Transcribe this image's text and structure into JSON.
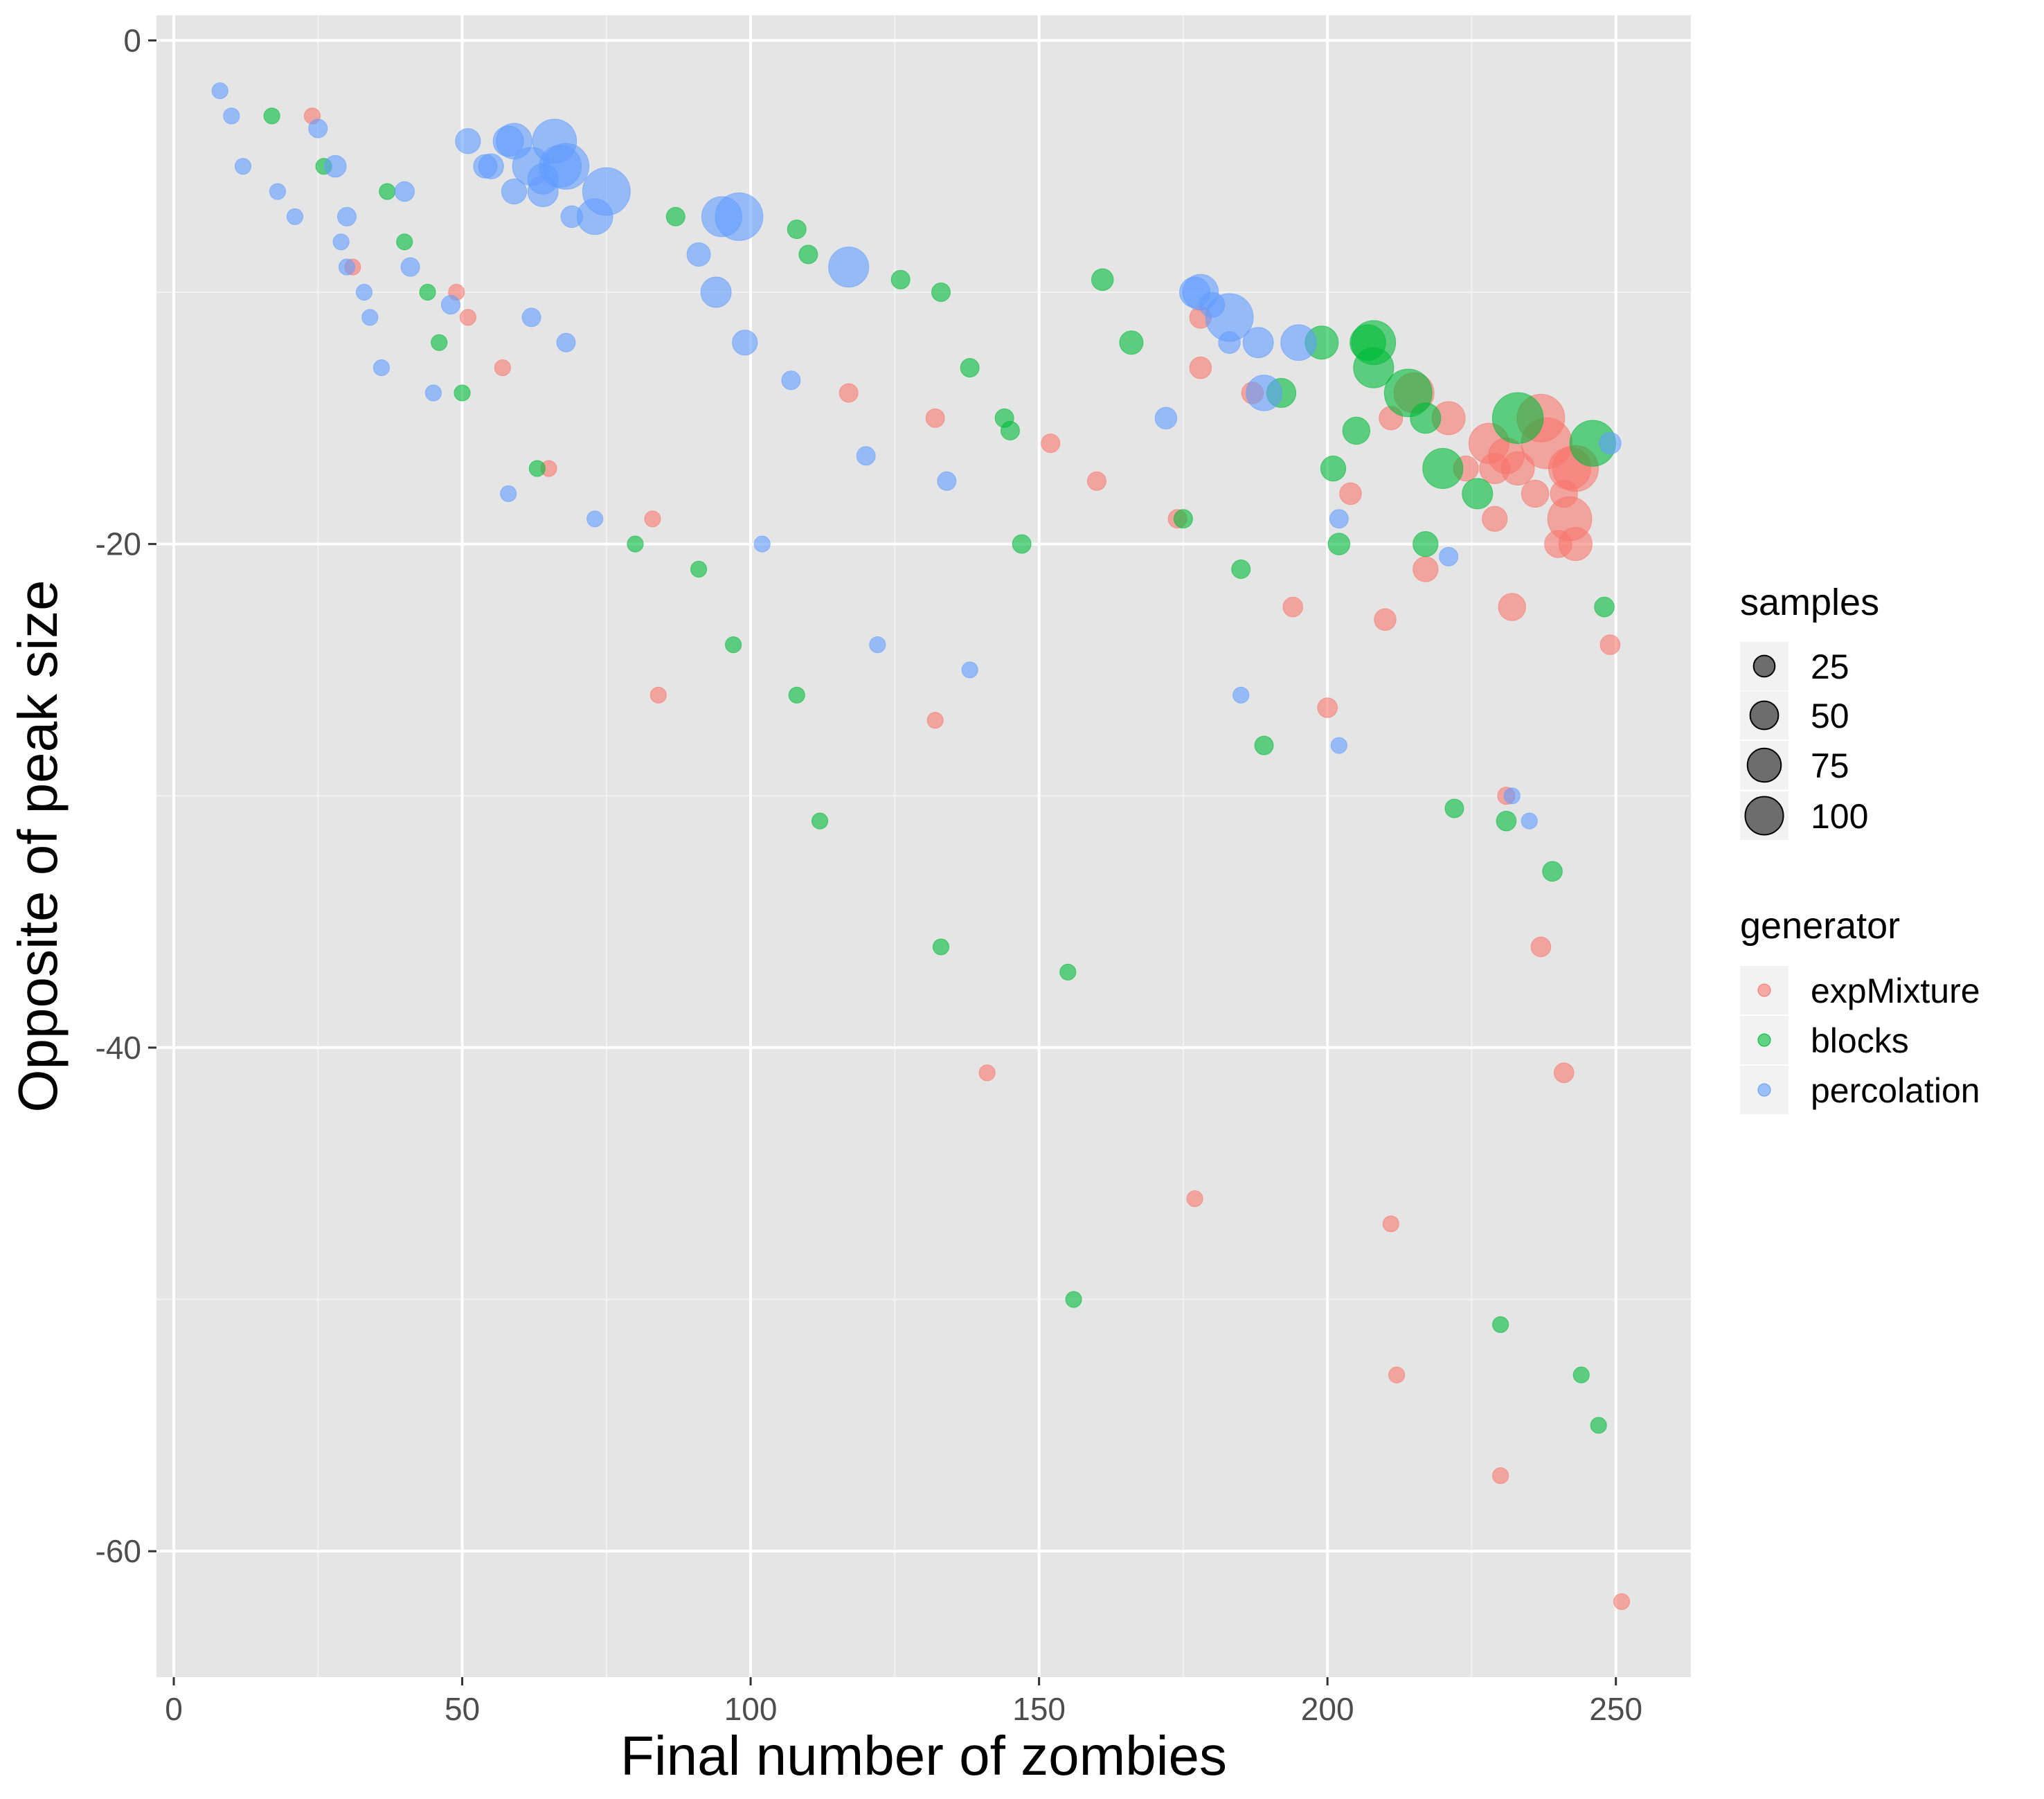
{
  "chart_data": {
    "type": "scatter",
    "xlabel": "Final number of zombies",
    "ylabel": "Opposite of peak size",
    "xlim": [
      -3,
      263
    ],
    "ylim": [
      -65,
      1
    ],
    "x_ticks": [
      0,
      50,
      100,
      150,
      200,
      250
    ],
    "x_tick_labels": [
      "0",
      "50",
      "100",
      "150",
      "200",
      "250"
    ],
    "y_ticks": [
      0,
      -20,
      -40,
      -60
    ],
    "y_tick_labels": [
      "0",
      "-20",
      "-40",
      "-60"
    ],
    "y_minor_ticks": [
      -10,
      -30,
      -50
    ],
    "grid": true,
    "legend_position": "right",
    "size_legend": {
      "title": "samples",
      "values": [
        25,
        50,
        75,
        100
      ],
      "labels": [
        "25",
        "50",
        "75",
        "100"
      ]
    },
    "color_legend": {
      "title": "generator"
    },
    "series": [
      {
        "name": "expMixture",
        "color": "#F8766D",
        "points": [
          {
            "x": 24,
            "y": -3,
            "s": 3
          },
          {
            "x": 31,
            "y": -9,
            "s": 3
          },
          {
            "x": 49,
            "y": -10,
            "s": 3
          },
          {
            "x": 51,
            "y": -11,
            "s": 3
          },
          {
            "x": 57,
            "y": -13,
            "s": 3
          },
          {
            "x": 65,
            "y": -17,
            "s": 3
          },
          {
            "x": 83,
            "y": -19,
            "s": 3
          },
          {
            "x": 84,
            "y": -26,
            "s": 3
          },
          {
            "x": 117,
            "y": -14,
            "s": 5
          },
          {
            "x": 132,
            "y": -15,
            "s": 5
          },
          {
            "x": 132,
            "y": -27,
            "s": 3
          },
          {
            "x": 141,
            "y": -41,
            "s": 3
          },
          {
            "x": 152,
            "y": -16,
            "s": 5
          },
          {
            "x": 160,
            "y": -17.5,
            "s": 5
          },
          {
            "x": 174,
            "y": -19,
            "s": 5
          },
          {
            "x": 177,
            "y": -46,
            "s": 3
          },
          {
            "x": 178,
            "y": -11,
            "s": 8
          },
          {
            "x": 178,
            "y": -13,
            "s": 8
          },
          {
            "x": 187,
            "y": -14,
            "s": 8
          },
          {
            "x": 194,
            "y": -22.5,
            "s": 6
          },
          {
            "x": 200,
            "y": -26.5,
            "s": 6
          },
          {
            "x": 204,
            "y": -18,
            "s": 8
          },
          {
            "x": 210,
            "y": -23,
            "s": 8
          },
          {
            "x": 211,
            "y": -47,
            "s": 3
          },
          {
            "x": 211,
            "y": -15,
            "s": 10
          },
          {
            "x": 212,
            "y": -53,
            "s": 3
          },
          {
            "x": 215,
            "y": -14,
            "s": 40
          },
          {
            "x": 217,
            "y": -21,
            "s": 12
          },
          {
            "x": 221,
            "y": -15,
            "s": 25
          },
          {
            "x": 224,
            "y": -17,
            "s": 12
          },
          {
            "x": 228,
            "y": -16,
            "s": 40
          },
          {
            "x": 229,
            "y": -19,
            "s": 12
          },
          {
            "x": 229,
            "y": -17,
            "s": 20
          },
          {
            "x": 230,
            "y": -57,
            "s": 3
          },
          {
            "x": 231,
            "y": -16.5,
            "s": 30
          },
          {
            "x": 232,
            "y": -22.5,
            "s": 15
          },
          {
            "x": 231,
            "y": -30,
            "s": 4
          },
          {
            "x": 233,
            "y": -17,
            "s": 25
          },
          {
            "x": 236,
            "y": -18,
            "s": 15
          },
          {
            "x": 237,
            "y": -15,
            "s": 60
          },
          {
            "x": 237,
            "y": -36,
            "s": 6
          },
          {
            "x": 238,
            "y": -16,
            "s": 70
          },
          {
            "x": 240,
            "y": -20,
            "s": 15
          },
          {
            "x": 241,
            "y": -18,
            "s": 15
          },
          {
            "x": 241,
            "y": -41,
            "s": 6
          },
          {
            "x": 242,
            "y": -17,
            "s": 45
          },
          {
            "x": 242,
            "y": -19,
            "s": 50
          },
          {
            "x": 243,
            "y": -17,
            "s": 55
          },
          {
            "x": 243,
            "y": -20,
            "s": 25
          },
          {
            "x": 249,
            "y": -24,
            "s": 6
          },
          {
            "x": 251,
            "y": -62,
            "s": 3
          }
        ]
      },
      {
        "name": "blocks",
        "color": "#00BA38",
        "points": [
          {
            "x": 17,
            "y": -3,
            "s": 3
          },
          {
            "x": 26,
            "y": -5,
            "s": 3
          },
          {
            "x": 37,
            "y": -6,
            "s": 3
          },
          {
            "x": 40,
            "y": -8,
            "s": 3
          },
          {
            "x": 44,
            "y": -10,
            "s": 3
          },
          {
            "x": 46,
            "y": -12,
            "s": 3
          },
          {
            "x": 50,
            "y": -14,
            "s": 3
          },
          {
            "x": 63,
            "y": -17,
            "s": 3
          },
          {
            "x": 80,
            "y": -20,
            "s": 3
          },
          {
            "x": 87,
            "y": -7,
            "s": 5
          },
          {
            "x": 91,
            "y": -21,
            "s": 3
          },
          {
            "x": 97,
            "y": -24,
            "s": 3
          },
          {
            "x": 108,
            "y": -7.5,
            "s": 5
          },
          {
            "x": 108,
            "y": -26,
            "s": 3
          },
          {
            "x": 110,
            "y": -8.5,
            "s": 5
          },
          {
            "x": 112,
            "y": -31,
            "s": 3
          },
          {
            "x": 126,
            "y": -9.5,
            "s": 5
          },
          {
            "x": 133,
            "y": -10,
            "s": 5
          },
          {
            "x": 133,
            "y": -36,
            "s": 3
          },
          {
            "x": 138,
            "y": -13,
            "s": 5
          },
          {
            "x": 144,
            "y": -15,
            "s": 5
          },
          {
            "x": 145,
            "y": -15.5,
            "s": 5
          },
          {
            "x": 147,
            "y": -20,
            "s": 5
          },
          {
            "x": 155,
            "y": -37,
            "s": 3
          },
          {
            "x": 156,
            "y": -50,
            "s": 3
          },
          {
            "x": 161,
            "y": -9.5,
            "s": 8
          },
          {
            "x": 166,
            "y": -12,
            "s": 10
          },
          {
            "x": 175,
            "y": -19,
            "s": 5
          },
          {
            "x": 185,
            "y": -21,
            "s": 5
          },
          {
            "x": 189,
            "y": -28,
            "s": 5
          },
          {
            "x": 192,
            "y": -14,
            "s": 18
          },
          {
            "x": 199,
            "y": -12,
            "s": 25
          },
          {
            "x": 201,
            "y": -17,
            "s": 12
          },
          {
            "x": 202,
            "y": -20,
            "s": 8
          },
          {
            "x": 205,
            "y": -15.5,
            "s": 15
          },
          {
            "x": 207,
            "y": -12,
            "s": 30
          },
          {
            "x": 208,
            "y": -12,
            "s": 50
          },
          {
            "x": 208,
            "y": -13,
            "s": 40
          },
          {
            "x": 214,
            "y": -14,
            "s": 60
          },
          {
            "x": 217,
            "y": -15,
            "s": 20
          },
          {
            "x": 217,
            "y": -20,
            "s": 12
          },
          {
            "x": 220,
            "y": -17,
            "s": 40
          },
          {
            "x": 222,
            "y": -30.5,
            "s": 5
          },
          {
            "x": 226,
            "y": -18,
            "s": 20
          },
          {
            "x": 230,
            "y": -51,
            "s": 3
          },
          {
            "x": 231,
            "y": -31,
            "s": 6
          },
          {
            "x": 233,
            "y": -15,
            "s": 70
          },
          {
            "x": 239,
            "y": -33,
            "s": 6
          },
          {
            "x": 244,
            "y": -53,
            "s": 3
          },
          {
            "x": 246,
            "y": -16,
            "s": 55
          },
          {
            "x": 247,
            "y": -55,
            "s": 3
          },
          {
            "x": 248,
            "y": -22.5,
            "s": 6
          }
        ]
      },
      {
        "name": "percolation",
        "color": "#619CFF",
        "points": [
          {
            "x": 8,
            "y": -2,
            "s": 3
          },
          {
            "x": 10,
            "y": -3,
            "s": 3
          },
          {
            "x": 12,
            "y": -5,
            "s": 3
          },
          {
            "x": 18,
            "y": -6,
            "s": 3
          },
          {
            "x": 21,
            "y": -7,
            "s": 3
          },
          {
            "x": 25,
            "y": -3.5,
            "s": 5
          },
          {
            "x": 28,
            "y": -5,
            "s": 8
          },
          {
            "x": 29,
            "y": -8,
            "s": 3
          },
          {
            "x": 30,
            "y": -7,
            "s": 5
          },
          {
            "x": 30,
            "y": -9,
            "s": 3
          },
          {
            "x": 33,
            "y": -10,
            "s": 3
          },
          {
            "x": 34,
            "y": -11,
            "s": 3
          },
          {
            "x": 36,
            "y": -13,
            "s": 3
          },
          {
            "x": 40,
            "y": -6,
            "s": 6
          },
          {
            "x": 41,
            "y": -9,
            "s": 5
          },
          {
            "x": 45,
            "y": -14,
            "s": 3
          },
          {
            "x": 48,
            "y": -10.5,
            "s": 5
          },
          {
            "x": 51,
            "y": -4,
            "s": 12
          },
          {
            "x": 54,
            "y": -5,
            "s": 10
          },
          {
            "x": 55,
            "y": -5,
            "s": 12
          },
          {
            "x": 58,
            "y": -4,
            "s": 20
          },
          {
            "x": 58,
            "y": -18,
            "s": 3
          },
          {
            "x": 59,
            "y": -4,
            "s": 30
          },
          {
            "x": 59,
            "y": -6,
            "s": 12
          },
          {
            "x": 62,
            "y": -11,
            "s": 5
          },
          {
            "x": 62,
            "y": -5,
            "s": 35
          },
          {
            "x": 64,
            "y": -5.5,
            "s": 20
          },
          {
            "x": 64,
            "y": -6,
            "s": 20
          },
          {
            "x": 66,
            "y": -4,
            "s": 50
          },
          {
            "x": 67,
            "y": -5,
            "s": 45
          },
          {
            "x": 68,
            "y": -5,
            "s": 55
          },
          {
            "x": 68,
            "y": -12,
            "s": 5
          },
          {
            "x": 69,
            "y": -7,
            "s": 8
          },
          {
            "x": 73,
            "y": -7,
            "s": 30
          },
          {
            "x": 73,
            "y": -19,
            "s": 3
          },
          {
            "x": 75,
            "y": -6,
            "s": 60
          },
          {
            "x": 91,
            "y": -8.5,
            "s": 10
          },
          {
            "x": 94,
            "y": -10,
            "s": 20
          },
          {
            "x": 95,
            "y": -7,
            "s": 40
          },
          {
            "x": 98,
            "y": -7,
            "s": 60
          },
          {
            "x": 99,
            "y": -12,
            "s": 12
          },
          {
            "x": 102,
            "y": -20,
            "s": 3
          },
          {
            "x": 107,
            "y": -13.5,
            "s": 5
          },
          {
            "x": 117,
            "y": -9,
            "s": 40
          },
          {
            "x": 120,
            "y": -16.5,
            "s": 5
          },
          {
            "x": 122,
            "y": -24,
            "s": 3
          },
          {
            "x": 134,
            "y": -17.5,
            "s": 5
          },
          {
            "x": 138,
            "y": -25,
            "s": 3
          },
          {
            "x": 172,
            "y": -15,
            "s": 8
          },
          {
            "x": 177,
            "y": -10,
            "s": 20
          },
          {
            "x": 178,
            "y": -10,
            "s": 30
          },
          {
            "x": 180,
            "y": -10.5,
            "s": 12
          },
          {
            "x": 183,
            "y": -12,
            "s": 8
          },
          {
            "x": 183,
            "y": -11,
            "s": 60
          },
          {
            "x": 185,
            "y": -26,
            "s": 3
          },
          {
            "x": 188,
            "y": -12,
            "s": 20
          },
          {
            "x": 189,
            "y": -14,
            "s": 30
          },
          {
            "x": 195,
            "y": -12,
            "s": 30
          },
          {
            "x": 202,
            "y": -19,
            "s": 5
          },
          {
            "x": 202,
            "y": -28,
            "s": 3
          },
          {
            "x": 221,
            "y": -20.5,
            "s": 5
          },
          {
            "x": 232,
            "y": -30,
            "s": 3
          },
          {
            "x": 235,
            "y": -31,
            "s": 3
          },
          {
            "x": 249,
            "y": -16,
            "s": 8
          }
        ]
      }
    ]
  }
}
